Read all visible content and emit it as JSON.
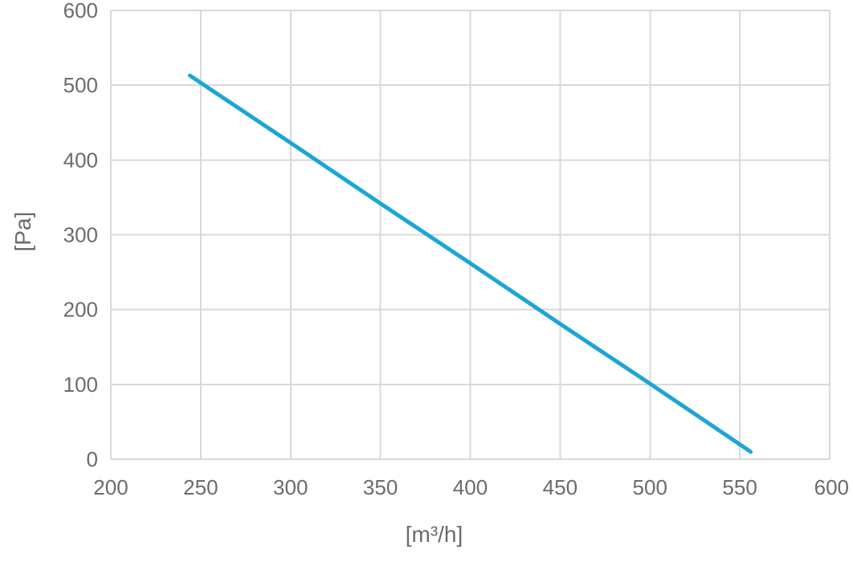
{
  "chart_data": {
    "type": "line",
    "title": "",
    "xlabel": "[m³/h]",
    "ylabel": "[Pa]",
    "xlim": [
      200,
      600
    ],
    "ylim": [
      0,
      600
    ],
    "x_ticks": [
      200,
      250,
      300,
      350,
      400,
      450,
      500,
      550,
      600
    ],
    "y_ticks": [
      0,
      100,
      200,
      300,
      400,
      500,
      600
    ],
    "grid": true,
    "legend": "none",
    "series": [
      {
        "color": "#1ea5d6",
        "x": [
          244,
          300,
          350,
          400,
          450,
          500,
          556
        ],
        "y": [
          513,
          423,
          342,
          262,
          181,
          101,
          10
        ]
      }
    ]
  }
}
